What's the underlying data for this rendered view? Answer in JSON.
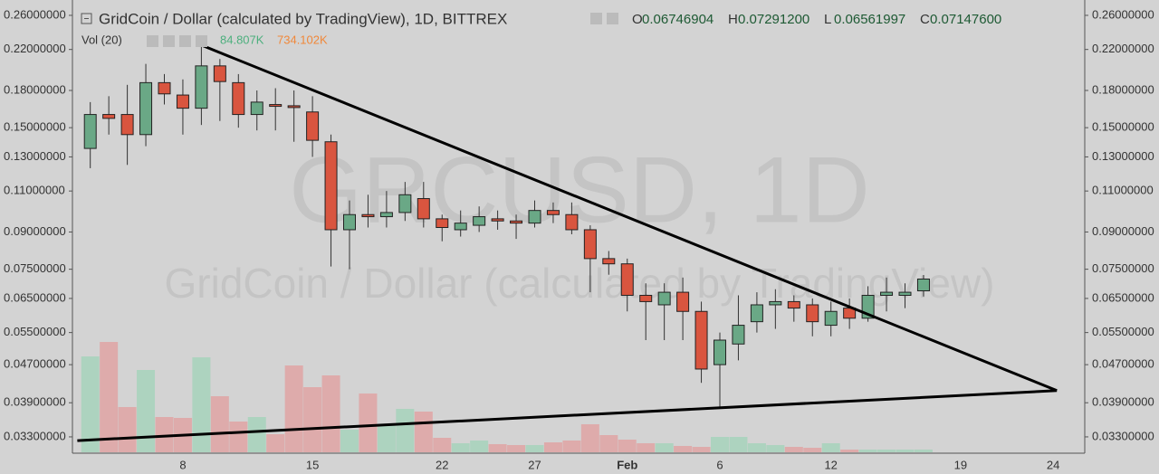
{
  "chart_data": {
    "type": "candlestick",
    "title": "GridCoin / Dollar (calculated by TradingView), 1D, BITTREX",
    "watermark": [
      "GRCUSD, 1D",
      "GridCoin / Dollar (calculated by TradingView)"
    ],
    "ohlc_legend": {
      "labels": [
        "O",
        "H",
        "L",
        "C"
      ],
      "values": [
        0.06746904,
        0.072912,
        0.06561997,
        0.071476
      ],
      "value_labels": [
        "0.06746904",
        "0.07291200",
        "0.06561997",
        "0.07147600"
      ]
    },
    "volume_legend": {
      "title": "Vol (20)",
      "values": [
        84.807,
        734.102
      ],
      "value_labels": [
        "84.807K",
        "734.102K"
      ],
      "colors": [
        "#4caf7d",
        "#f0883a"
      ]
    },
    "categories": [
      null,
      null,
      null,
      null,
      null,
      "8",
      null,
      null,
      null,
      null,
      null,
      null,
      "15",
      null,
      null,
      null,
      null,
      null,
      null,
      "22",
      null,
      null,
      null,
      null,
      "27",
      null,
      null,
      null,
      null,
      "Feb",
      null,
      null,
      null,
      null,
      "6",
      null,
      null,
      null,
      null,
      null,
      "12",
      null,
      null,
      null,
      null,
      null,
      null,
      "19",
      null,
      null,
      null,
      null,
      "24"
    ],
    "open": [
      0.1355,
      0.16,
      0.16,
      0.145,
      0.187,
      0.176,
      0.165,
      0.203,
      0.187,
      0.16,
      0.168,
      0.167,
      0.162,
      0.14,
      0.091,
      0.098,
      0.097,
      0.099,
      0.106,
      0.096,
      0.091,
      0.093,
      0.096,
      0.095,
      0.094,
      0.1,
      0.098,
      0.091,
      0.079,
      0.077,
      0.066,
      0.063,
      0.067,
      0.061,
      0.047,
      0.052,
      0.058,
      0.063,
      0.064,
      0.063,
      0.057,
      0.062,
      0.059,
      0.066,
      0.066,
      0.06746904,
      null,
      null,
      null,
      null,
      null,
      null,
      null
    ],
    "high": [
      0.17,
      0.175,
      0.185,
      0.205,
      0.195,
      0.19,
      0.225,
      0.21,
      0.195,
      0.18,
      0.182,
      0.18,
      0.175,
      0.145,
      0.105,
      0.108,
      0.11,
      0.115,
      0.115,
      0.098,
      0.1,
      0.102,
      0.1,
      0.098,
      0.105,
      0.104,
      0.104,
      0.093,
      0.082,
      0.079,
      0.07,
      0.07,
      0.072,
      0.064,
      0.055,
      0.066,
      0.067,
      0.068,
      0.066,
      0.065,
      0.064,
      0.065,
      0.069,
      0.072,
      0.07,
      0.072912,
      null,
      null,
      null,
      null,
      null,
      null,
      null
    ],
    "low": [
      0.123,
      0.145,
      0.125,
      0.137,
      0.168,
      0.145,
      0.152,
      0.155,
      0.15,
      0.148,
      0.148,
      0.14,
      0.13,
      0.076,
      0.075,
      0.092,
      0.092,
      0.095,
      0.092,
      0.086,
      0.088,
      0.09,
      0.091,
      0.087,
      0.092,
      0.094,
      0.089,
      0.067,
      0.073,
      0.061,
      0.053,
      0.053,
      0.053,
      0.043,
      0.038,
      0.048,
      0.055,
      0.056,
      0.058,
      0.054,
      0.054,
      0.056,
      0.058,
      0.061,
      0.062,
      0.06561997,
      null,
      null,
      null,
      null,
      null,
      null,
      null
    ],
    "close": [
      0.16,
      0.157,
      0.145,
      0.187,
      0.177,
      0.165,
      0.203,
      0.188,
      0.16,
      0.17,
      0.167,
      0.166,
      0.141,
      0.091,
      0.098,
      0.097,
      0.099,
      0.108,
      0.096,
      0.092,
      0.094,
      0.097,
      0.095,
      0.094,
      0.1,
      0.098,
      0.091,
      0.079,
      0.077,
      0.066,
      0.064,
      0.067,
      0.061,
      0.046,
      0.053,
      0.057,
      0.063,
      0.064,
      0.062,
      0.058,
      0.061,
      0.059,
      0.066,
      0.067,
      0.067,
      0.071476,
      null,
      null,
      null,
      null,
      null,
      null,
      null
    ],
    "volume": [
      2968,
      3416,
      1400,
      2548,
      1092,
      1064,
      2940,
      1736,
      952,
      1092,
      560,
      2688,
      2016,
      2380,
      700,
      1820,
      840,
      1344,
      1260,
      448,
      280,
      364,
      252,
      224,
      224,
      308,
      364,
      868,
      532,
      392,
      280,
      280,
      196,
      168,
      476,
      476,
      280,
      224,
      168,
      140,
      280,
      84,
      84,
      84,
      84,
      84.807,
      null,
      null,
      null,
      null,
      null,
      null,
      null
    ],
    "up_color": "#6aa886",
    "down_color": "#d9553f",
    "up_volume_color": "#a9d3bd",
    "down_volume_color": "#dfa6a6",
    "log": true,
    "ylim": [
      0.0306,
      0.2803
    ],
    "yticks": [
      {
        "value": 0.26,
        "label": "0.26000000"
      },
      {
        "value": 0.22,
        "label": "0.22000000"
      },
      {
        "value": 0.18,
        "label": "0.18000000"
      },
      {
        "value": 0.15,
        "label": "0.15000000"
      },
      {
        "value": 0.13,
        "label": "0.13000000"
      },
      {
        "value": 0.11,
        "label": "0.11000000"
      },
      {
        "value": 0.09,
        "label": "0.09000000"
      },
      {
        "value": 0.075,
        "label": "0.07500000"
      },
      {
        "value": 0.065,
        "label": "0.06500000"
      },
      {
        "value": 0.055,
        "label": "0.05500000"
      },
      {
        "value": 0.047,
        "label": "0.04700000"
      },
      {
        "value": 0.039,
        "label": "0.03900000"
      },
      {
        "value": 0.033,
        "label": "0.03300000"
      }
    ],
    "trendlines": [
      {
        "x": [
          6,
          52.2
        ],
        "y": [
          0.2247,
          0.0414
        ]
      },
      {
        "x": [
          -0.7,
          52.2
        ],
        "y": [
          0.0324,
          0.0414
        ]
      }
    ]
  }
}
